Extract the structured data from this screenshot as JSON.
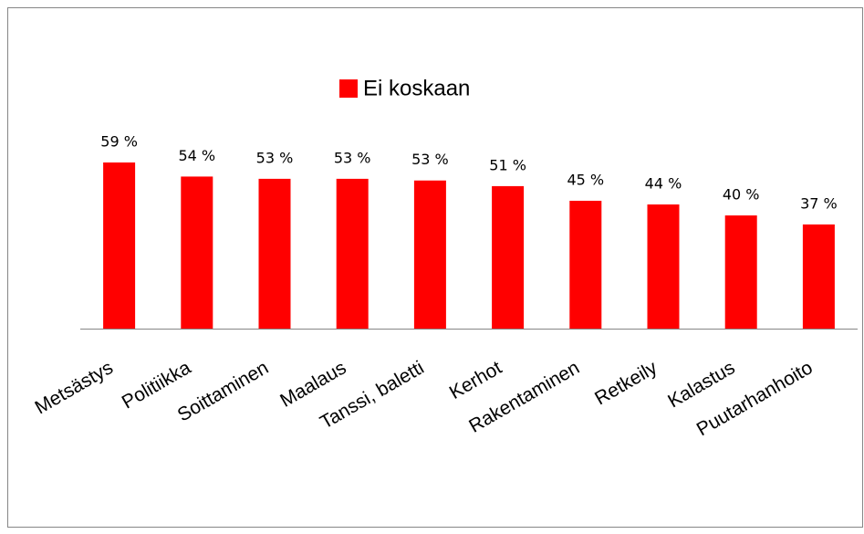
{
  "chart_data": {
    "type": "bar",
    "categories": [
      "Metsästys",
      "Politiikka",
      "Soittaminen",
      "Maalaus",
      "Tanssi, baletti",
      "Kerhot",
      "Rakentaminen",
      "Retkeily",
      "Kalastus",
      "Puutarhanhoito"
    ],
    "series": [
      {
        "name": "Ei koskaan",
        "color": "#ff0000",
        "values": [
          59,
          54,
          53.2,
          53.2,
          52.6,
          50.6,
          45.4,
          44.1,
          40.2,
          37
        ],
        "value_labels": [
          "59 %",
          "54 %",
          "53 %",
          "53 %",
          "53 %",
          "51 %",
          "45 %",
          "44 %",
          "40 %",
          "37 %"
        ]
      }
    ],
    "legend": "top"
  }
}
